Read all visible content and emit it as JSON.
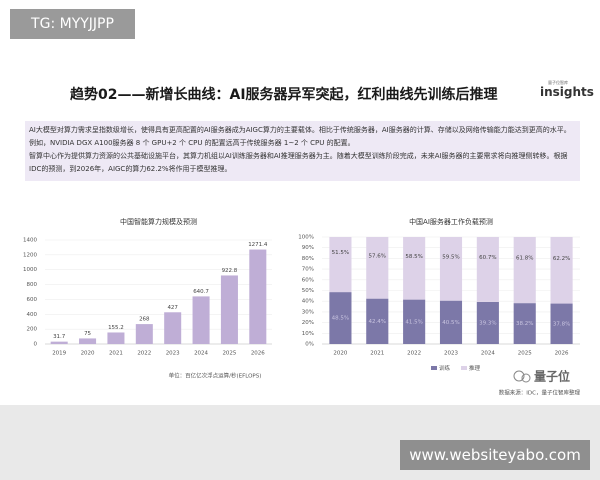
{
  "badge": "TG: MYYJJPP",
  "title": "趋势02——新增长曲线：AI服务器异军突起，红利曲线先训练后推理",
  "logo": {
    "text": "insights",
    "small": "量子位智库"
  },
  "paragraphs": [
    "AI大模型对算力需求呈指数级增长，使得具有更高配置的AI服务器成为AIGC算力的主要载体。相比于传统服务器，AI服务器的计算、存储以及网络传输能力能达到更高的水平。例如，NVIDIA DGX A100服务器 8 个 GPU+2 个 CPU 的配置远高于传统服务器 1~2 个 CPU 的配置。",
    "智算中心作为提供算力资源的公共基础设施平台，其算力机组以AI训练服务器和AI推理服务器为主。随着大模型训练阶段完成，未来AI服务器的主要需求将向推理侧转移。根据IDC的预测，到2026年，AIGC的算力62.2%将作用于模型推理。"
  ],
  "watermark": "量子位",
  "footer_url": "www.websiteyabo.com",
  "chart_data": [
    {
      "type": "bar",
      "title": "中国智能算力规模及预测",
      "categories": [
        "2019",
        "2020",
        "2021",
        "2022",
        "2023",
        "2024",
        "2025",
        "2026"
      ],
      "values": [
        31.7,
        75,
        155.2,
        268,
        427,
        640.7,
        922.8,
        1271.4
      ],
      "color": "#bfaed6",
      "ylim": [
        0,
        1400
      ],
      "yticks": [
        0,
        200,
        400,
        600,
        800,
        1000,
        1200,
        1400
      ],
      "grid": true,
      "note": "单位：百亿亿次浮点运算/秒(EFLOPS)"
    },
    {
      "type": "stacked_bar",
      "title": "中国AI服务器工作负载预测",
      "categories": [
        "2020",
        "2021",
        "2022",
        "2023",
        "2024",
        "2025",
        "2026"
      ],
      "series": [
        {
          "name": "训练",
          "color": "#7c78a8",
          "values": [
            48.5,
            42.4,
            41.5,
            40.5,
            39.3,
            38.2,
            37.8
          ],
          "value_labels": [
            "48.5%",
            "42.4%",
            "41.5%",
            "40.5%",
            "39.3%",
            "38.2%",
            "37.8%"
          ]
        },
        {
          "name": "推理",
          "color": "#ddd2e8",
          "values": [
            51.5,
            57.6,
            58.5,
            59.5,
            60.7,
            61.8,
            62.2
          ],
          "value_labels": [
            "51.5%",
            "57.6%",
            "58.5%",
            "59.5%",
            "60.7%",
            "61.8%",
            "62.2%"
          ]
        }
      ],
      "ylim": [
        0,
        100
      ],
      "yticks": [
        {
          "value": 0,
          "label": "0%"
        },
        {
          "value": 10,
          "label": "10%"
        },
        {
          "value": 20,
          "label": "20%"
        },
        {
          "value": 30,
          "label": "30%"
        },
        {
          "value": 40,
          "label": "40%"
        },
        {
          "value": 50,
          "label": "50%"
        },
        {
          "value": 60,
          "label": "60%"
        },
        {
          "value": 70,
          "label": "70%"
        },
        {
          "value": 80,
          "label": "80%"
        },
        {
          "value": 90,
          "label": "90%"
        },
        {
          "value": 100,
          "label": "100%"
        }
      ],
      "grid": true,
      "legend": "bottom",
      "source": "数据来源：IDC，量子位智库整理"
    }
  ]
}
